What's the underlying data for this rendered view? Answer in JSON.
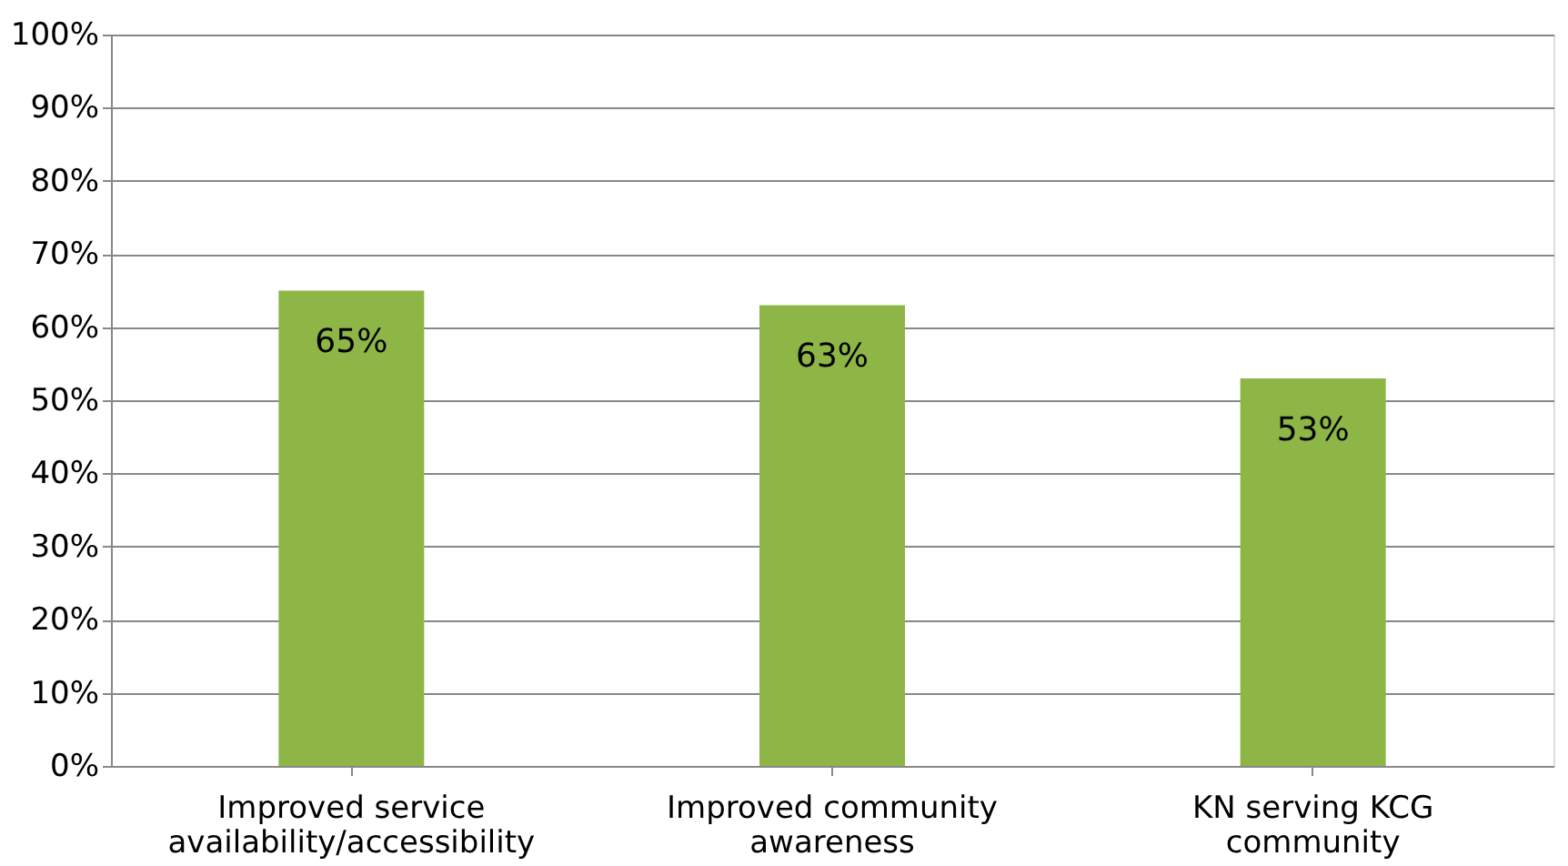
{
  "chart_data": {
    "type": "bar",
    "categories": [
      "Improved service availability/accessibility",
      "Improved community awareness",
      "KN serving KCG community"
    ],
    "values": [
      65,
      63,
      53
    ],
    "color": "#8db646",
    "value_labels": [
      "65%",
      "63%",
      "53%"
    ],
    "ylim": [
      0,
      100
    ],
    "yticks": [
      {
        "value": 0,
        "label": "0%"
      },
      {
        "value": 10,
        "label": "10%"
      },
      {
        "value": 20,
        "label": "20%"
      },
      {
        "value": 30,
        "label": "30%"
      },
      {
        "value": 40,
        "label": "40%"
      },
      {
        "value": 50,
        "label": "50%"
      },
      {
        "value": 60,
        "label": "60%"
      },
      {
        "value": 70,
        "label": "70%"
      },
      {
        "value": 80,
        "label": "80%"
      },
      {
        "value": 90,
        "label": "90%"
      },
      {
        "value": 100,
        "label": "100%"
      }
    ],
    "grid": "y"
  }
}
